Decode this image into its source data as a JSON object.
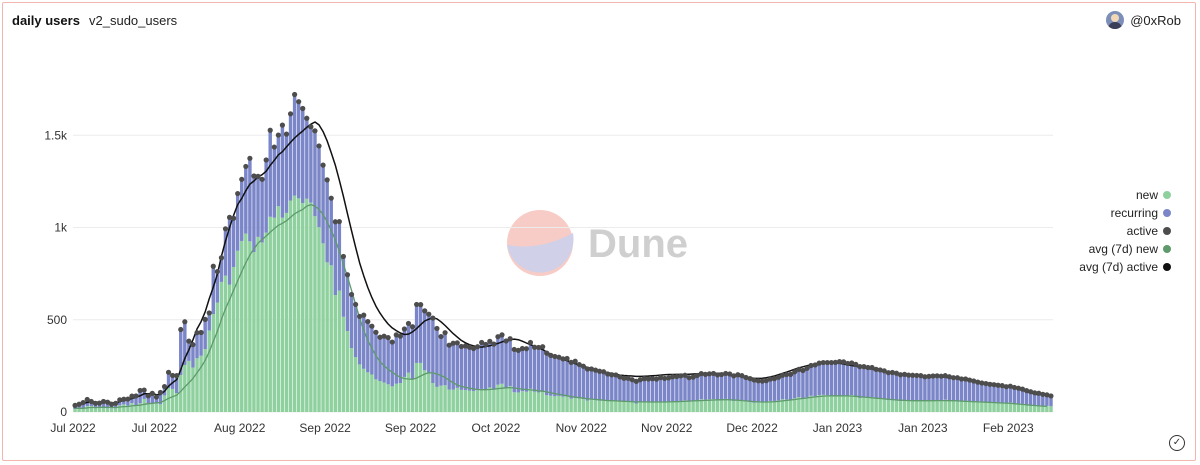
{
  "header": {
    "title": "daily users",
    "subtitle": "v2_sudo_users",
    "author": "@0xRob"
  },
  "watermark": "Dune",
  "colors": {
    "new": "#8fd19e",
    "recurring": "#7b86c9",
    "active": "#4d4d4d",
    "avg_new": "#5e9a6c",
    "avg_active": "#111111",
    "grid": "#ececec"
  },
  "chart_data": {
    "type": "bar",
    "stacked": true,
    "ylim": [
      0,
      2000
    ],
    "y_ticks": [
      0,
      500,
      1000,
      1500
    ],
    "y_tick_labels": [
      "0",
      "500",
      "1k",
      "1.5k"
    ],
    "x_tick_labels": [
      "Jul 2022",
      "Jul 2022",
      "Aug 2022",
      "Sep 2022",
      "Sep 2022",
      "Oct 2022",
      "Nov 2022",
      "Nov 2022",
      "Dec 2022",
      "Jan 2023",
      "Jan 2023",
      "Feb 2023"
    ],
    "x_tick_index": [
      0,
      20,
      41,
      62,
      83,
      104,
      125,
      146,
      167,
      188,
      209,
      230
    ],
    "legend_position": "right",
    "grid": true,
    "series": [
      {
        "name": "new",
        "values": [
          16,
          16,
          18,
          32,
          32,
          23,
          26,
          27,
          20,
          20,
          21,
          36,
          41,
          34,
          48,
          33,
          47,
          71,
          42,
          45,
          45,
          42,
          90,
          130,
          125,
          103,
          200,
          255,
          277,
          241,
          291,
          305,
          341,
          442,
          531,
          593,
          705,
          739,
          691,
          786,
          874,
          927,
          967,
          925,
          867,
          949,
          919,
          972,
          1058,
          1053,
          1115,
          1053,
          1079,
          1146,
          1173,
          1158,
          1132,
          1156,
          1135,
          1061,
          1002,
          914,
          811,
          795,
          634,
          658,
          516,
          439,
          346,
          297,
          258,
          234,
          215,
          203,
          177,
          168,
          160,
          150,
          139,
          153,
          157,
          190,
          213,
          178,
          266,
          266,
          226,
          211,
          157,
          136,
          143,
          145,
          122,
          121,
          131,
          120,
          119,
          116,
          114,
          118,
          125,
          123,
          133,
          120,
          148,
          153,
          132,
          140,
          107,
          106,
          113,
          110,
          126,
          110,
          106,
          114,
          91,
          88,
          85,
          87,
          83,
          84,
          73,
          76,
          73,
          70,
          62,
          67,
          65,
          61,
          64,
          60,
          59,
          61,
          59,
          56,
          54,
          55,
          46,
          55,
          57,
          54,
          56,
          52,
          57,
          52,
          57,
          59,
          54,
          60,
          63,
          56,
          59,
          64,
          69,
          67,
          69,
          70,
          68,
          66,
          71,
          67,
          60,
          66,
          64,
          57,
          53,
          50,
          52,
          52,
          54,
          60,
          60,
          63,
          69,
          68,
          64,
          74,
          81,
          71,
          79,
          88,
          85,
          92,
          93,
          91,
          88,
          85,
          88,
          91,
          85,
          92,
          84,
          76,
          81,
          76,
          81,
          75,
          73,
          71,
          64,
          66,
          64,
          59,
          63,
          61,
          62,
          62,
          63,
          58,
          60,
          63,
          65,
          64,
          67,
          63,
          60,
          62,
          58,
          62,
          59,
          57,
          54,
          53,
          53,
          52,
          52,
          51,
          51,
          48,
          52,
          48,
          45,
          44,
          39,
          36,
          34,
          34,
          32,
          33,
          31
        ],
        "points": 240
      },
      {
        "name": "recurring",
        "values": [
          20,
          26,
          33,
          36,
          25,
          24,
          22,
          30,
          33,
          22,
          26,
          30,
          28,
          36,
          38,
          54,
          70,
          48,
          45,
          56,
          36,
          64,
          48,
          85,
          73,
          94,
          247,
          234,
          107,
          124,
          139,
          126,
          161,
          95,
          259,
          168,
          131,
          254,
          364,
          264,
          310,
          334,
          364,
          450,
          412,
          328,
          342,
          394,
          469,
          383,
          386,
          502,
          427,
          470,
          548,
          524,
          513,
          436,
          411,
          463,
          440,
          424,
          447,
          364,
          397,
          374,
          327,
          305,
          291,
          286,
          260,
          291,
          275,
          262,
          255,
          237,
          251,
          253,
          240,
          265,
          254,
          260,
          267,
          284,
          317,
          316,
          322,
          319,
          352,
          317,
          266,
          285,
          240,
          252,
          244,
          235,
          239,
          235,
          230,
          236,
          252,
          243,
          250,
          248,
          260,
          265,
          253,
          257,
          232,
          228,
          231,
          233,
          251,
          241,
          244,
          240,
          228,
          219,
          216,
          210,
          205,
          206,
          196,
          199,
          184,
          178,
          171,
          166,
          162,
          160,
          154,
          146,
          143,
          140,
          131,
          127,
          129,
          120,
          120,
          120,
          124,
          125,
          125,
          126,
          130,
          130,
          128,
          132,
          138,
          136,
          136,
          130,
          130,
          134,
          139,
          137,
          138,
          139,
          133,
          137,
          138,
          139,
          136,
          136,
          133,
          130,
          128,
          123,
          117,
          115,
          116,
          119,
          121,
          125,
          130,
          135,
          140,
          144,
          150,
          154,
          158,
          164,
          170,
          173,
          175,
          177,
          180,
          184,
          185,
          181,
          178,
          174,
          174,
          170,
          165,
          165,
          160,
          156,
          155,
          152,
          149,
          148,
          146,
          143,
          141,
          139,
          137,
          136,
          134,
          133,
          133,
          132,
          131,
          130,
          130,
          128,
          126,
          124,
          121,
          117,
          114,
          111,
          108,
          104,
          101,
          98,
          96,
          94,
          92,
          89,
          88,
          85,
          84,
          80,
          77,
          74,
          70,
          68,
          64,
          60,
          56,
          52,
          48,
          44
        ]
      },
      {
        "name": "active",
        "marker": "dot"
      },
      {
        "name": "avg (7d) new",
        "marker": "line",
        "values": [
          20,
          20,
          20,
          22,
          25,
          24,
          25,
          26,
          25,
          25,
          24,
          27,
          29,
          30,
          33,
          35,
          37,
          42,
          45,
          47,
          50,
          52,
          62,
          74,
          83,
          91,
          112,
          136,
          158,
          182,
          212,
          244,
          280,
          327,
          383,
          438,
          502,
          560,
          609,
          660,
          711,
          761,
          808,
          851,
          884,
          915,
          935,
          954,
          975,
          994,
          1012,
          1023,
          1037,
          1056,
          1074,
          1087,
          1098,
          1116,
          1124,
          1116,
          1098,
          1070,
          1030,
          983,
          931,
          870,
          801,
          733,
          660,
          584,
          510,
          445,
          390,
          345,
          306,
          273,
          250,
          232,
          215,
          200,
          188,
          181,
          179,
          177,
          184,
          195,
          206,
          212,
          212,
          206,
          198,
          187,
          172,
          158,
          146,
          139,
          134,
          129,
          125,
          122,
          121,
          121,
          122,
          124,
          127,
          129,
          131,
          132,
          130,
          127,
          124,
          122,
          120,
          118,
          115,
          113,
          109,
          104,
          100,
          96,
          92,
          88,
          84,
          81,
          78,
          75,
          72,
          70,
          68,
          66,
          64,
          62,
          61,
          60,
          59,
          58,
          57,
          56,
          55,
          55,
          55,
          54,
          54,
          54,
          54,
          54,
          55,
          56,
          56,
          57,
          58,
          59,
          60,
          61,
          62,
          63,
          64,
          65,
          66,
          66,
          67,
          66,
          65,
          64,
          62,
          60,
          58,
          56,
          55,
          54,
          54,
          55,
          56,
          58,
          60,
          63,
          65,
          68,
          71,
          73,
          76,
          79,
          82,
          84,
          86,
          87,
          88,
          88,
          88,
          88,
          87,
          86,
          85,
          83,
          81,
          79,
          77,
          75,
          73,
          71,
          69,
          67,
          65,
          64,
          63,
          62,
          61,
          61,
          61,
          61,
          61,
          61,
          62,
          62,
          62,
          61,
          61,
          60,
          59,
          58,
          57,
          56,
          55,
          54,
          53,
          52,
          51,
          50,
          49,
          48,
          47,
          45,
          43,
          41,
          39,
          37,
          35,
          33,
          32,
          31
        ]
      },
      {
        "name": "avg (7d) active",
        "marker": "line",
        "values": [
          40,
          41,
          45,
          52,
          56,
          54,
          52,
          54,
          55,
          51,
          49,
          56,
          63,
          66,
          73,
          80,
          88,
          99,
          99,
          101,
          94,
          95,
          112,
          140,
          159,
          175,
          230,
          290,
          337,
          392,
          450,
          490,
          543,
          613,
          677,
          748,
          844,
          927,
          1000,
          1066,
          1124,
          1158,
          1199,
          1235,
          1252,
          1274,
          1286,
          1305,
          1337,
          1364,
          1394,
          1411,
          1437,
          1462,
          1485,
          1505,
          1523,
          1543,
          1560,
          1572,
          1556,
          1520,
          1470,
          1406,
          1338,
          1257,
          1169,
          1074,
          983,
          893,
          807,
          739,
          675,
          620,
          574,
          536,
          504,
          477,
          456,
          441,
          428,
          420,
          422,
          434,
          452,
          473,
          493,
          503,
          510,
          505,
          489,
          469,
          447,
          425,
          406,
          388,
          375,
          365,
          358,
          354,
          352,
          355,
          359,
          365,
          372,
          380,
          386,
          392,
          395,
          392,
          384,
          374,
          365,
          356,
          347,
          338,
          325,
          313,
          302,
          294,
          285,
          278,
          270,
          262,
          256,
          250,
          242,
          236,
          229,
          222,
          218,
          213,
          209,
          205,
          200,
          198,
          196,
          195,
          193,
          193,
          194,
          195,
          197,
          198,
          200,
          202,
          203,
          203,
          204,
          204,
          204,
          205,
          206,
          207,
          208,
          209,
          210,
          210,
          210,
          209,
          207,
          204,
          200,
          195,
          191,
          188,
          185,
          183,
          182,
          183,
          186,
          190,
          195,
          202,
          209,
          216,
          224,
          232,
          239,
          245,
          251,
          256,
          261,
          264,
          266,
          267,
          267,
          266,
          264,
          260,
          256,
          252,
          248,
          244,
          240,
          236,
          232,
          228,
          224,
          220,
          216,
          212,
          208,
          205,
          202,
          200,
          198,
          197,
          196,
          195,
          194,
          193,
          192,
          190,
          188,
          186,
          183,
          180,
          177,
          174,
          171,
          168,
          165,
          162,
          159,
          156,
          153,
          150,
          146,
          141,
          136,
          130,
          124,
          117,
          110,
          104,
          98,
          92
        ]
      }
    ]
  }
}
